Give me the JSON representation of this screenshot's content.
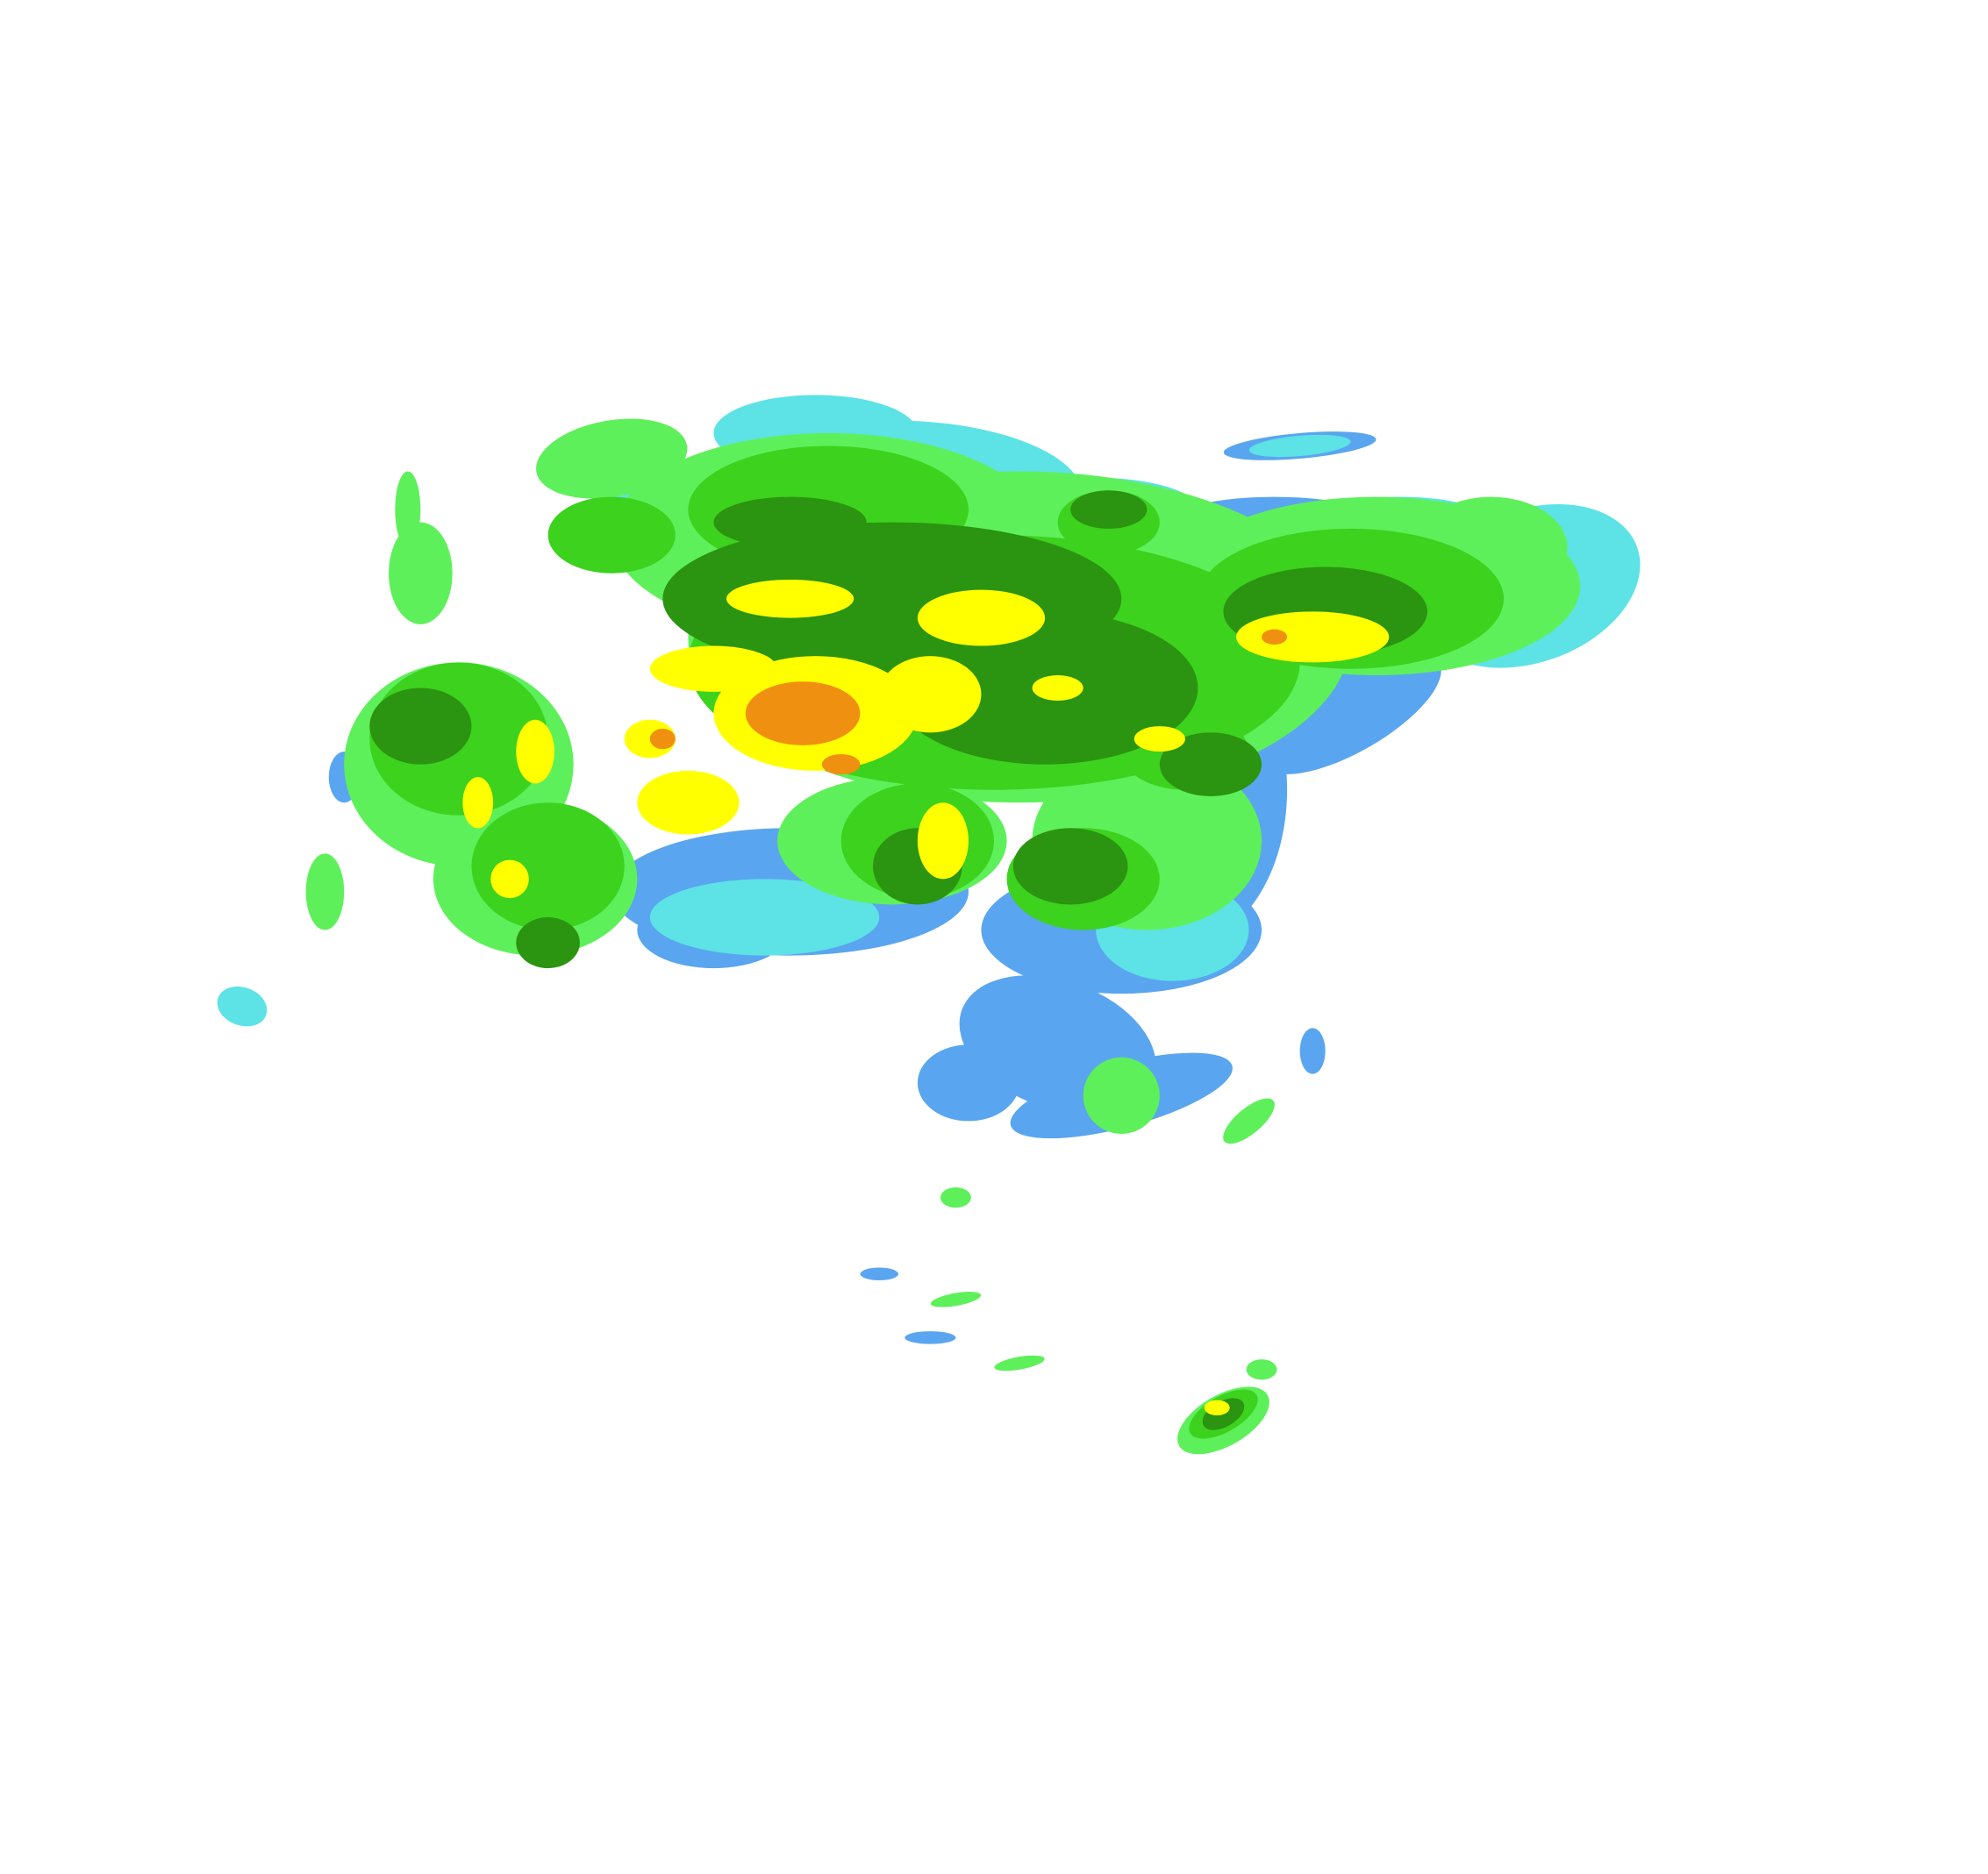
{
  "map": {
    "title": "",
    "type": "radar-reflectivity",
    "palette": {
      "blue": "#5aa5ef",
      "cyan": "#5de2e6",
      "light_green": "#5ef05a",
      "green": "#3cd21e",
      "dark_green": "#2b9410",
      "yellow": "#ffff00",
      "gold": "#e8c000",
      "orange": "#f09010",
      "red": "#ee1010",
      "magenta": "#ee10ee"
    }
  }
}
